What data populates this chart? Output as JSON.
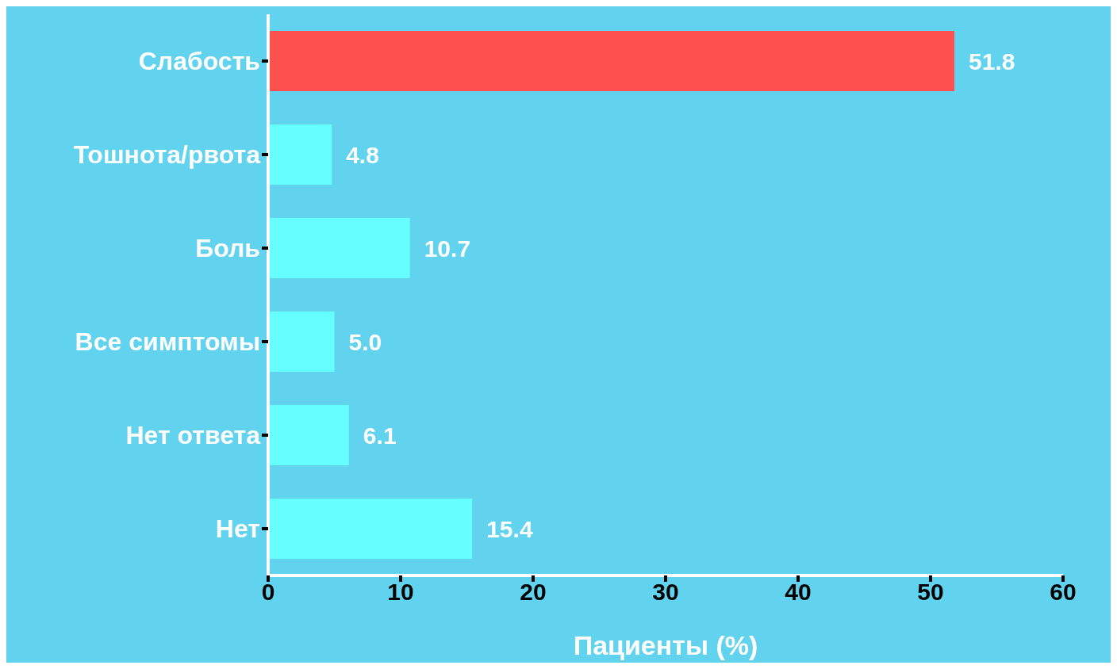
{
  "chart_data": {
    "type": "bar",
    "orientation": "horizontal",
    "xlabel": "Пациенты (%)",
    "categories": [
      "Слабость",
      "Тошнота/рвота",
      "Боль",
      "Все симптомы",
      "Нет ответа",
      "Нет"
    ],
    "values": [
      51.8,
      4.8,
      10.7,
      5.0,
      6.1,
      15.4
    ],
    "value_labels": [
      "51.8",
      "4.8",
      "10.7",
      "5.0",
      "6.1",
      "15.4"
    ],
    "colors": [
      "#ff5050",
      "#66ffff",
      "#66ffff",
      "#66ffff",
      "#66ffff",
      "#66ffff"
    ],
    "xlim": [
      0,
      60
    ],
    "xticks": [
      0,
      10,
      20,
      30,
      40,
      50,
      60
    ],
    "grid": false,
    "legend": false
  }
}
